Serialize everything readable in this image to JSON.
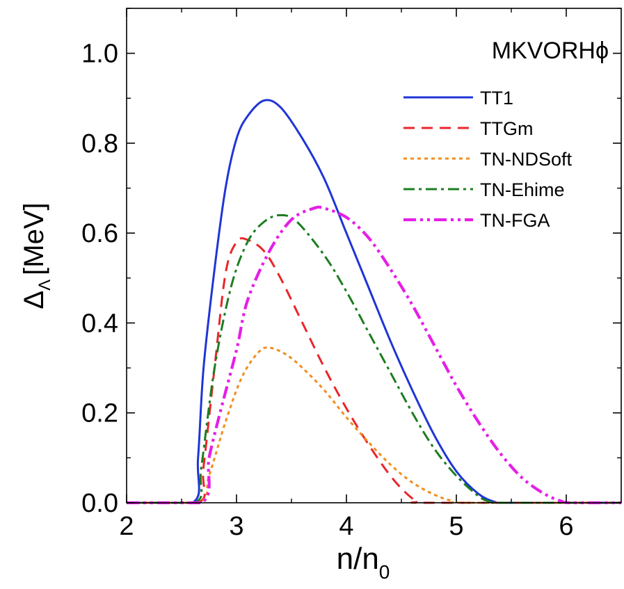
{
  "chart_data": {
    "type": "line",
    "title": "MKVORHϕ",
    "xlabel": "n/n",
    "xlabel_sub": "0",
    "ylabel": "Δ",
    "ylabel_sub": "Λ",
    "ylabel_unit": "[MeV]",
    "xlim": [
      2.0,
      6.5
    ],
    "ylim": [
      0.0,
      1.1
    ],
    "x_ticks": [
      2,
      3,
      4,
      5,
      6
    ],
    "x_tick_labels": [
      "2",
      "3",
      "4",
      "5",
      "6"
    ],
    "y_ticks": [
      0.0,
      0.2,
      0.4,
      0.6,
      0.8,
      1.0
    ],
    "y_tick_labels": [
      "0.0",
      "0.2",
      "0.4",
      "0.6",
      "0.8",
      "1.0"
    ],
    "legend_position": "top-right",
    "grid": false,
    "series": [
      {
        "name": "TT1",
        "color": "#1f35d6",
        "style": "solid",
        "points": [
          [
            2.0,
            0
          ],
          [
            2.6,
            0
          ],
          [
            2.65,
            0.1
          ],
          [
            2.7,
            0.3
          ],
          [
            2.8,
            0.52
          ],
          [
            2.9,
            0.7
          ],
          [
            3.0,
            0.81
          ],
          [
            3.1,
            0.86
          ],
          [
            3.25,
            0.895
          ],
          [
            3.4,
            0.88
          ],
          [
            3.6,
            0.81
          ],
          [
            3.8,
            0.72
          ],
          [
            4.0,
            0.6
          ],
          [
            4.2,
            0.48
          ],
          [
            4.4,
            0.36
          ],
          [
            4.6,
            0.25
          ],
          [
            4.8,
            0.15
          ],
          [
            5.0,
            0.07
          ],
          [
            5.2,
            0.02
          ],
          [
            5.35,
            0.002
          ],
          [
            5.45,
            0
          ],
          [
            6.5,
            0
          ]
        ]
      },
      {
        "name": "TTGm",
        "color": "#e8262b",
        "style": "dashed",
        "points": [
          [
            2.0,
            0
          ],
          [
            2.65,
            0
          ],
          [
            2.7,
            0.08
          ],
          [
            2.8,
            0.3
          ],
          [
            2.9,
            0.51
          ],
          [
            3.0,
            0.58
          ],
          [
            3.1,
            0.585
          ],
          [
            3.25,
            0.56
          ],
          [
            3.4,
            0.5
          ],
          [
            3.6,
            0.4
          ],
          [
            3.8,
            0.3
          ],
          [
            4.0,
            0.21
          ],
          [
            4.2,
            0.13
          ],
          [
            4.4,
            0.06
          ],
          [
            4.55,
            0.02
          ],
          [
            4.65,
            0.003
          ],
          [
            4.75,
            0
          ],
          [
            6.5,
            0
          ]
        ]
      },
      {
        "name": "TN-NDSoft",
        "color": "#f28c1e",
        "style": "dotted",
        "points": [
          [
            2.0,
            0
          ],
          [
            2.65,
            0
          ],
          [
            2.75,
            0.06
          ],
          [
            2.9,
            0.18
          ],
          [
            3.05,
            0.28
          ],
          [
            3.2,
            0.335
          ],
          [
            3.3,
            0.345
          ],
          [
            3.45,
            0.33
          ],
          [
            3.6,
            0.3
          ],
          [
            3.8,
            0.25
          ],
          [
            4.0,
            0.19
          ],
          [
            4.2,
            0.135
          ],
          [
            4.4,
            0.085
          ],
          [
            4.6,
            0.045
          ],
          [
            4.8,
            0.018
          ],
          [
            4.95,
            0.005
          ],
          [
            5.1,
            0
          ],
          [
            6.5,
            0
          ]
        ]
      },
      {
        "name": "TN-Ehime",
        "color": "#1c7d20",
        "style": "dashdot",
        "points": [
          [
            2.0,
            0
          ],
          [
            2.62,
            0
          ],
          [
            2.68,
            0.08
          ],
          [
            2.8,
            0.3
          ],
          [
            2.95,
            0.48
          ],
          [
            3.1,
            0.58
          ],
          [
            3.25,
            0.625
          ],
          [
            3.4,
            0.64
          ],
          [
            3.55,
            0.625
          ],
          [
            3.8,
            0.55
          ],
          [
            4.0,
            0.47
          ],
          [
            4.2,
            0.38
          ],
          [
            4.4,
            0.29
          ],
          [
            4.6,
            0.2
          ],
          [
            4.8,
            0.12
          ],
          [
            5.0,
            0.06
          ],
          [
            5.2,
            0.015
          ],
          [
            5.3,
            0.003
          ],
          [
            5.4,
            0
          ],
          [
            6.5,
            0
          ]
        ]
      },
      {
        "name": "TN-FGA",
        "color": "#e61ee6",
        "style": "dashdotdot",
        "points": [
          [
            2.0,
            0
          ],
          [
            2.68,
            0
          ],
          [
            2.75,
            0.1
          ],
          [
            2.85,
            0.2
          ],
          [
            3.0,
            0.34
          ],
          [
            3.1,
            0.45
          ],
          [
            3.3,
            0.56
          ],
          [
            3.5,
            0.63
          ],
          [
            3.7,
            0.655
          ],
          [
            3.8,
            0.655
          ],
          [
            4.0,
            0.635
          ],
          [
            4.2,
            0.59
          ],
          [
            4.4,
            0.52
          ],
          [
            4.6,
            0.44
          ],
          [
            4.8,
            0.35
          ],
          [
            5.0,
            0.26
          ],
          [
            5.2,
            0.18
          ],
          [
            5.4,
            0.11
          ],
          [
            5.6,
            0.055
          ],
          [
            5.8,
            0.02
          ],
          [
            5.95,
            0.004
          ],
          [
            6.05,
            0
          ],
          [
            6.5,
            0
          ]
        ]
      }
    ]
  }
}
